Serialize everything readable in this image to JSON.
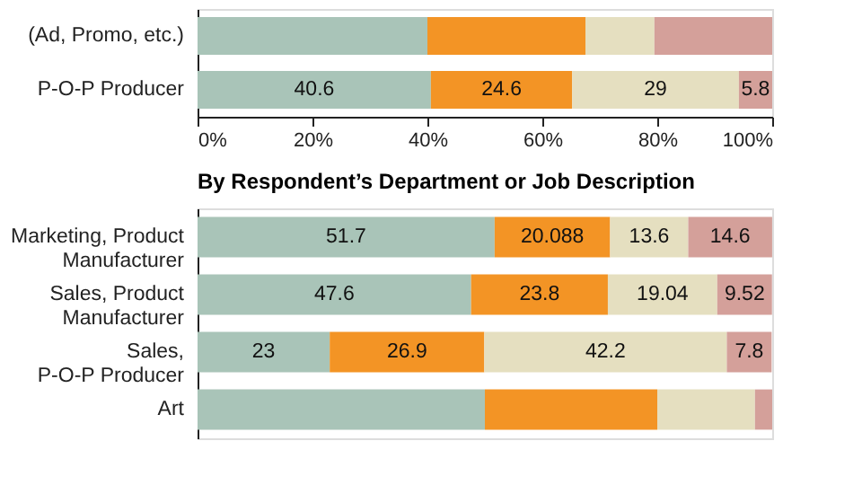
{
  "chart_data": [
    {
      "type": "bar",
      "orientation": "horizontal",
      "stacked": true,
      "categories": [
        "(Ad, Promo, etc.)",
        "P-O-P Producer"
      ],
      "xlim": [
        0,
        100
      ],
      "xticks": [
        {
          "value": 0,
          "label": "0%"
        },
        {
          "value": 20,
          "label": "20%"
        },
        {
          "value": 40,
          "label": "40%"
        },
        {
          "value": 60,
          "label": "60%"
        },
        {
          "value": 80,
          "label": "80%"
        },
        {
          "value": 100,
          "label": "100%"
        }
      ],
      "grid": false,
      "legend": false,
      "series": [
        {
          "color": "#a9c4b8",
          "values": [
            40,
            40.6
          ],
          "value_labels": [
            null,
            "40.6"
          ]
        },
        {
          "color": "#f39425",
          "values": [
            27.5,
            24.6
          ],
          "value_labels": [
            null,
            "24.6"
          ]
        },
        {
          "color": "#e5dfc0",
          "values": [
            12,
            29
          ],
          "value_labels": [
            null,
            "29"
          ]
        },
        {
          "color": "#d4a09a",
          "values": [
            20.5,
            5.8
          ],
          "value_labels": [
            null,
            "5.8"
          ]
        }
      ]
    },
    {
      "type": "bar",
      "orientation": "horizontal",
      "stacked": true,
      "title": "By Respondent’s Department or Job Description",
      "categories": [
        "Marketing, Product\nManufacturer",
        "Sales, Product\nManufacturer",
        "Sales,\nP-O-P Producer",
        "Art"
      ],
      "xlim": [
        0,
        100
      ],
      "tick_labels": false,
      "grid": false,
      "legend": false,
      "series": [
        {
          "color": "#a9c4b8",
          "values": [
            51.7,
            47.6,
            23,
            50
          ],
          "value_labels": [
            "51.7",
            "47.6",
            "23",
            null
          ]
        },
        {
          "color": "#f39425",
          "values": [
            20.088,
            23.8,
            26.9,
            30
          ],
          "value_labels": [
            "20.088",
            "23.8",
            "26.9",
            null
          ]
        },
        {
          "color": "#e5dfc0",
          "values": [
            13.6,
            19.04,
            42.2,
            17
          ],
          "value_labels": [
            "13.6",
            "19.04",
            "42.2",
            null
          ]
        },
        {
          "color": "#d4a09a",
          "values": [
            14.6,
            9.52,
            7.8,
            3
          ],
          "value_labels": [
            "14.6",
            "9.52",
            "7.8",
            null
          ]
        }
      ]
    }
  ]
}
